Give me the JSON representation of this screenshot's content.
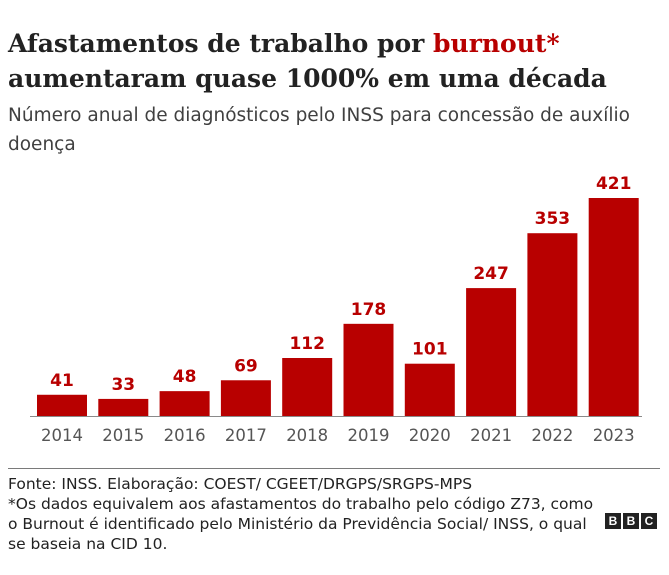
{
  "header": {
    "title_part1": "Afastamentos de trabalho por ",
    "title_highlight": "burnout*",
    "title_part2": " aumentaram quase 1000% em uma década",
    "subtitle": "Número anual de diagnósticos pelo INSS para concessão de auxílio doença"
  },
  "colors": {
    "bar": "#b80000",
    "label": "#b80000",
    "tick": "#555555",
    "axis": "#8a8a8a"
  },
  "chart_data": {
    "type": "bar",
    "categories": [
      "2014",
      "2015",
      "2016",
      "2017",
      "2018",
      "2019",
      "2020",
      "2021",
      "2022",
      "2023"
    ],
    "values": [
      41,
      33,
      48,
      69,
      112,
      178,
      101,
      247,
      353,
      421
    ],
    "title": "Afastamentos de trabalho por burnout* aumentaram quase 1000% em uma década",
    "subtitle": "Número anual de diagnósticos pelo INSS para concessão de auxílio doença",
    "xlabel": "",
    "ylabel": "",
    "ylim": [
      0,
      421
    ],
    "grid": false,
    "data_labels": true
  },
  "footer": {
    "source": "Fonte: INSS. Elaboração: COEST/ CGEET/DRGPS/SRGPS-MPS",
    "note": "*Os dados equivalem aos afastamentos do trabalho pelo código Z73, como o Burnout é identificado pelo Ministério da Previdência Social/ INSS, o qual se baseia na CID 10.",
    "logo_letters": [
      "B",
      "B",
      "C"
    ]
  }
}
